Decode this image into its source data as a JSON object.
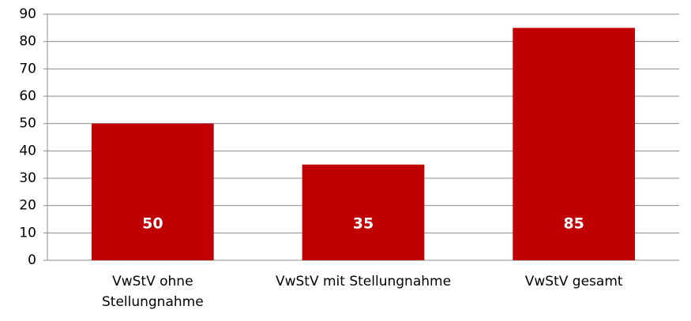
{
  "chart_data": {
    "type": "bar",
    "categories": [
      "VwStV ohne Stellungnahme",
      "VwStV mit Stellungnahme",
      "VwStV gesamt"
    ],
    "values": [
      50,
      35,
      85
    ],
    "color": "#c00000",
    "ylim": [
      0,
      90
    ],
    "yticks": [
      0,
      10,
      20,
      30,
      40,
      50,
      60,
      70,
      80,
      90
    ],
    "grid": true
  }
}
